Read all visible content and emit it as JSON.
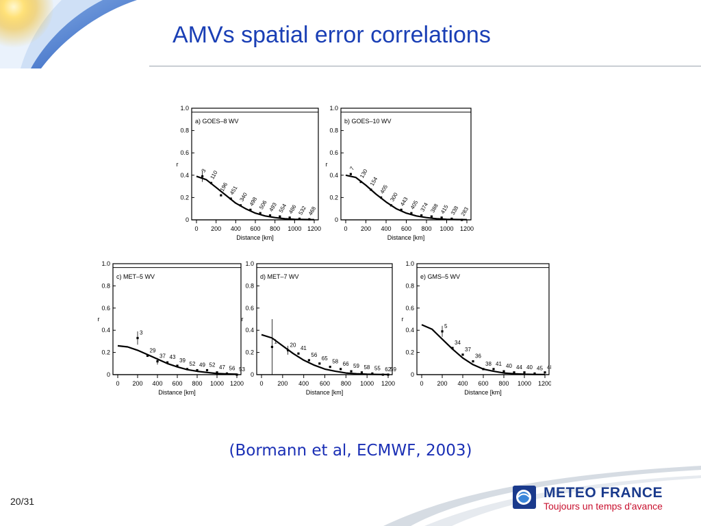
{
  "slide": {
    "title": "AMVs spatial error correlations",
    "citation": "(Bormann et al, ECMWF, 2003)",
    "page_number": "20/31"
  },
  "logo": {
    "name": "METEO FRANCE",
    "tagline": "Toujours un temps d'avance"
  },
  "colors": {
    "title": "#1a3fb5",
    "citation": "#1a2fb5",
    "logo_blue": "#1a3a8c",
    "logo_red": "#c8102e"
  },
  "chart_data": [
    {
      "type": "line",
      "panel_label": "a) GOES–8 WV",
      "xlabel": "Distance [km]",
      "ylabel": "r",
      "xlim": [
        0,
        1200
      ],
      "ylim": [
        0,
        1.0
      ],
      "x_ticks": [
        0,
        200,
        400,
        600,
        800,
        1000,
        1200
      ],
      "y_ticks": [
        0,
        0.2,
        0.4,
        0.6,
        0.8,
        1.0
      ],
      "y_tick_labels": [
        "0",
        "0.2",
        "0.4",
        "0.6",
        "0.8",
        "1.0"
      ],
      "fit_curve": {
        "x": [
          0,
          100,
          200,
          300,
          400,
          500,
          600,
          700,
          800,
          900,
          1000,
          1100,
          1200
        ],
        "y": [
          0.39,
          0.36,
          0.29,
          0.22,
          0.15,
          0.1,
          0.06,
          0.035,
          0.02,
          0.01,
          0.005,
          0.003,
          0.002
        ]
      },
      "points": [
        {
          "x": 60,
          "y": 0.39,
          "label": "3",
          "err": 0.05
        },
        {
          "x": 150,
          "y": 0.33,
          "label": "110"
        },
        {
          "x": 250,
          "y": 0.22,
          "label": "196"
        },
        {
          "x": 350,
          "y": 0.19,
          "label": "451"
        },
        {
          "x": 450,
          "y": 0.13,
          "label": "340"
        },
        {
          "x": 550,
          "y": 0.09,
          "label": "498"
        },
        {
          "x": 650,
          "y": 0.06,
          "label": "506"
        },
        {
          "x": 750,
          "y": 0.04,
          "label": "493"
        },
        {
          "x": 850,
          "y": 0.03,
          "label": "554"
        },
        {
          "x": 950,
          "y": 0.02,
          "label": "486"
        },
        {
          "x": 1050,
          "y": 0.01,
          "label": "532"
        },
        {
          "x": 1150,
          "y": 0.005,
          "label": "468"
        }
      ]
    },
    {
      "type": "line",
      "panel_label": "b) GOES–10 WV",
      "xlabel": "Distance [km]",
      "ylabel": "r",
      "xlim": [
        0,
        1200
      ],
      "ylim": [
        0,
        1.0
      ],
      "x_ticks": [
        0,
        200,
        400,
        600,
        800,
        1000,
        1200
      ],
      "y_ticks": [
        0,
        0.2,
        0.4,
        0.6,
        0.8,
        1.0
      ],
      "y_tick_labels": [
        "0",
        "0.2",
        "0.4",
        "0.6",
        "0.8",
        "1.0"
      ],
      "fit_curve": {
        "x": [
          0,
          100,
          200,
          300,
          400,
          500,
          600,
          700,
          800,
          900,
          1000,
          1100,
          1200
        ],
        "y": [
          0.4,
          0.38,
          0.31,
          0.23,
          0.16,
          0.1,
          0.06,
          0.035,
          0.02,
          0.01,
          0.005,
          0.003,
          0.002
        ]
      },
      "points": [
        {
          "x": 50,
          "y": 0.41,
          "label": "7"
        },
        {
          "x": 150,
          "y": 0.34,
          "label": "130"
        },
        {
          "x": 250,
          "y": 0.27,
          "label": "154"
        },
        {
          "x": 350,
          "y": 0.2,
          "label": "405"
        },
        {
          "x": 450,
          "y": 0.13,
          "label": "300"
        },
        {
          "x": 550,
          "y": 0.09,
          "label": "443"
        },
        {
          "x": 650,
          "y": 0.06,
          "label": "405"
        },
        {
          "x": 750,
          "y": 0.04,
          "label": "374"
        },
        {
          "x": 850,
          "y": 0.03,
          "label": "388"
        },
        {
          "x": 950,
          "y": 0.02,
          "label": "415"
        },
        {
          "x": 1050,
          "y": 0.01,
          "label": "338"
        },
        {
          "x": 1150,
          "y": 0.0,
          "label": "283"
        }
      ]
    },
    {
      "type": "line",
      "panel_label": "c) MET–5 WV",
      "xlabel": "Distance [km]",
      "ylabel": "r",
      "xlim": [
        0,
        1200
      ],
      "ylim": [
        0,
        1.0
      ],
      "x_ticks": [
        0,
        200,
        400,
        600,
        800,
        1000,
        1200
      ],
      "y_ticks": [
        0,
        0.2,
        0.4,
        0.6,
        0.8,
        1.0
      ],
      "y_tick_labels": [
        "0",
        "0.2",
        "0.4",
        "0.6",
        "0.8",
        "1.0"
      ],
      "fit_curve": {
        "x": [
          0,
          100,
          200,
          300,
          400,
          500,
          600,
          700,
          800,
          900,
          1000,
          1100,
          1200
        ],
        "y": [
          0.26,
          0.25,
          0.22,
          0.18,
          0.14,
          0.1,
          0.07,
          0.045,
          0.03,
          0.02,
          0.01,
          0.006,
          0.004
        ]
      },
      "points": [
        {
          "x": 200,
          "y": 0.33,
          "label": "3",
          "err": 0.06
        },
        {
          "x": 300,
          "y": 0.17,
          "label": "29"
        },
        {
          "x": 400,
          "y": 0.12,
          "label": "37",
          "err": 0.03
        },
        {
          "x": 500,
          "y": 0.11,
          "label": "43"
        },
        {
          "x": 600,
          "y": 0.08,
          "label": "39"
        },
        {
          "x": 700,
          "y": 0.05,
          "label": "52"
        },
        {
          "x": 800,
          "y": 0.04,
          "label": "49"
        },
        {
          "x": 900,
          "y": 0.04,
          "label": "52"
        },
        {
          "x": 1000,
          "y": 0.02,
          "label": "47"
        },
        {
          "x": 1100,
          "y": 0.01,
          "label": "56"
        },
        {
          "x": 1200,
          "y": 0.0,
          "label": "53"
        }
      ]
    },
    {
      "type": "line",
      "panel_label": "d) MET–7 WV",
      "xlabel": "Distance [km]",
      "ylabel": "r",
      "xlim": [
        0,
        1200
      ],
      "ylim": [
        0,
        1.0
      ],
      "x_ticks": [
        0,
        200,
        400,
        600,
        800,
        1000,
        1200
      ],
      "y_ticks": [
        0,
        0.2,
        0.4,
        0.6,
        0.8,
        1.0
      ],
      "y_tick_labels": [
        "0",
        "0.2",
        "0.4",
        "0.6",
        "0.8",
        "1.0"
      ],
      "fit_curve": {
        "x": [
          0,
          100,
          200,
          300,
          400,
          500,
          600,
          700,
          800,
          900,
          1000,
          1100,
          1200
        ],
        "y": [
          0.36,
          0.33,
          0.26,
          0.19,
          0.13,
          0.085,
          0.05,
          0.03,
          0.015,
          0.008,
          0.004,
          0.002,
          0.001
        ]
      },
      "points": [
        {
          "x": 100,
          "y": 0.25,
          "label": "1",
          "err": 0.25
        },
        {
          "x": 250,
          "y": 0.22,
          "label": "20",
          "err": 0.04
        },
        {
          "x": 350,
          "y": 0.19,
          "label": "41"
        },
        {
          "x": 450,
          "y": 0.13,
          "label": "56"
        },
        {
          "x": 550,
          "y": 0.1,
          "label": "65"
        },
        {
          "x": 650,
          "y": 0.07,
          "label": "58"
        },
        {
          "x": 750,
          "y": 0.05,
          "label": "66"
        },
        {
          "x": 850,
          "y": 0.03,
          "label": "59"
        },
        {
          "x": 950,
          "y": 0.02,
          "label": "58"
        },
        {
          "x": 1050,
          "y": 0.01,
          "label": "55"
        },
        {
          "x": 1150,
          "y": 0.0,
          "label": "62"
        },
        {
          "x": 1200,
          "y": 0.0,
          "label": "59"
        }
      ]
    },
    {
      "type": "line",
      "panel_label": "e) GMS–5 WV",
      "xlabel": "Distance [km]",
      "ylabel": "r",
      "xlim": [
        0,
        1200
      ],
      "ylim": [
        0,
        1.0
      ],
      "x_ticks": [
        0,
        200,
        400,
        600,
        800,
        1000,
        1200
      ],
      "y_ticks": [
        0,
        0.2,
        0.4,
        0.6,
        0.8,
        1.0
      ],
      "y_tick_labels": [
        "0",
        "0.2",
        "0.4",
        "0.6",
        "0.8",
        "1.0"
      ],
      "fit_curve": {
        "x": [
          0,
          100,
          200,
          300,
          400,
          500,
          600,
          700,
          800,
          900,
          1000,
          1100,
          1200
        ],
        "y": [
          0.45,
          0.41,
          0.32,
          0.23,
          0.15,
          0.09,
          0.05,
          0.03,
          0.015,
          0.008,
          0.004,
          0.002,
          0.001
        ]
      },
      "points": [
        {
          "x": 200,
          "y": 0.39,
          "label": "5",
          "err": 0.05
        },
        {
          "x": 300,
          "y": 0.24,
          "label": "34"
        },
        {
          "x": 400,
          "y": 0.18,
          "label": "37"
        },
        {
          "x": 500,
          "y": 0.12,
          "label": "36"
        },
        {
          "x": 600,
          "y": 0.05,
          "label": "38"
        },
        {
          "x": 700,
          "y": 0.05,
          "label": "41"
        },
        {
          "x": 800,
          "y": 0.03,
          "label": "40"
        },
        {
          "x": 900,
          "y": 0.02,
          "label": "44"
        },
        {
          "x": 1000,
          "y": 0.02,
          "label": "40"
        },
        {
          "x": 1100,
          "y": 0.01,
          "label": "45"
        },
        {
          "x": 1200,
          "y": 0.02,
          "label": "48"
        }
      ]
    }
  ]
}
